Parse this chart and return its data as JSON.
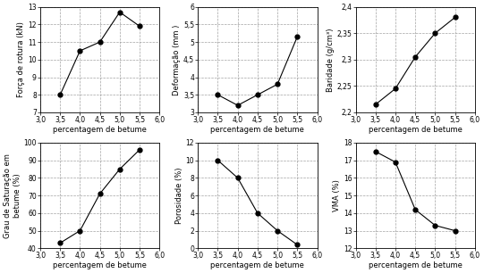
{
  "x": [
    3.5,
    4.0,
    4.5,
    5.0,
    5.5
  ],
  "charts": [
    {
      "ylabel": "Força de rotura (kN)",
      "ylim": [
        7,
        13
      ],
      "yticks": [
        7,
        8,
        9,
        10,
        11,
        12,
        13
      ],
      "ytick_labels": [
        "7",
        "8",
        "9",
        "10",
        "11",
        "12",
        "13"
      ],
      "y": [
        8.0,
        10.5,
        11.0,
        12.7,
        11.9
      ]
    },
    {
      "ylabel": "Deformação (mm )",
      "ylim": [
        3,
        6
      ],
      "yticks": [
        3,
        3.5,
        4,
        4.5,
        5,
        5.5,
        6
      ],
      "ytick_labels": [
        "3",
        "3,5",
        "4",
        "4,5",
        "5",
        "5,5",
        "6"
      ],
      "y": [
        3.5,
        3.2,
        3.5,
        3.8,
        5.15
      ]
    },
    {
      "ylabel": "Baridade (g/cm³)",
      "ylim": [
        2.2,
        2.4
      ],
      "yticks": [
        2.2,
        2.25,
        2.3,
        2.35,
        2.4
      ],
      "ytick_labels": [
        "2,2",
        "2,25",
        "2,3",
        "2,35",
        "2,4"
      ],
      "y": [
        2.215,
        2.245,
        2.305,
        2.35,
        2.38
      ]
    },
    {
      "ylabel": "Grau de Saturação em\nbetume (%)",
      "ylim": [
        40,
        100
      ],
      "yticks": [
        40,
        50,
        60,
        70,
        80,
        90,
        100
      ],
      "ytick_labels": [
        "40",
        "50",
        "60",
        "70",
        "80",
        "90",
        "100"
      ],
      "y": [
        43,
        50,
        71,
        85,
        96
      ]
    },
    {
      "ylabel": "Porosidade (%)",
      "ylim": [
        0,
        12
      ],
      "yticks": [
        0,
        2,
        4,
        6,
        8,
        10,
        12
      ],
      "ytick_labels": [
        "0",
        "2",
        "4",
        "6",
        "8",
        "10",
        "12"
      ],
      "y": [
        10.0,
        8.0,
        4.0,
        2.0,
        0.4
      ]
    },
    {
      "ylabel": "VMA (%)",
      "ylim": [
        12,
        18
      ],
      "yticks": [
        12,
        13,
        14,
        15,
        16,
        17,
        18
      ],
      "ytick_labels": [
        "12",
        "13",
        "14",
        "15",
        "16",
        "17",
        "18"
      ],
      "y": [
        17.5,
        16.9,
        14.2,
        13.3,
        13.0
      ]
    }
  ],
  "xlabel": "percentagem de betume",
  "xlim": [
    3.0,
    6.0
  ],
  "xticks": [
    3.0,
    3.5,
    4.0,
    4.5,
    5.0,
    5.5,
    6.0
  ],
  "xticklabels": [
    "3,0",
    "3,5",
    "4,0",
    "4,5",
    "5,0",
    "5,5",
    "6,0"
  ],
  "line_color": "#000000",
  "marker": "o",
  "markersize": 3.5,
  "markerfacecolor": "#000000",
  "grid_color": "#999999",
  "grid_style": "--",
  "bg_color": "#ffffff",
  "text_color": "#000000",
  "label_fontsize": 6.0,
  "tick_fontsize": 5.5,
  "xlabel_fontsize": 6.0
}
